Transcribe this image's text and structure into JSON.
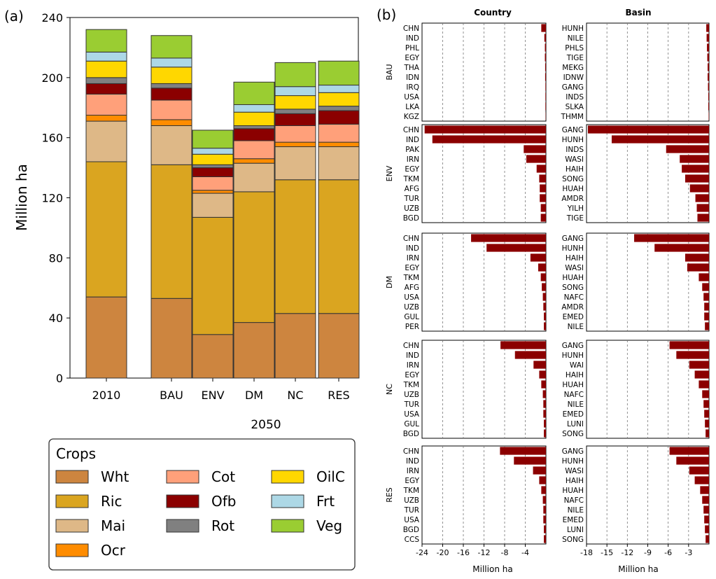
{
  "panel_labels": {
    "a": "(a)",
    "b": "(b)"
  },
  "colors": {
    "Wht": "#cd853f",
    "Ric": "#daa520",
    "Mai": "#deb887",
    "Ocr": "#ff8c00",
    "Cot": "#ffa07a",
    "Ofb": "#8b0000",
    "Rot": "#808080",
    "OilC": "#ffd700",
    "Frt": "#add8e6",
    "Veg": "#9acd32",
    "hbar": "#8b0000"
  },
  "chart_data": [
    {
      "type": "bar",
      "stacked": true,
      "categories": [
        "2010",
        "BAU",
        "ENV",
        "DM",
        "NC",
        "RES"
      ],
      "xlabel": "2050",
      "ylabel": "Million ha",
      "ylim": [
        0,
        240
      ],
      "yticks": [
        0,
        40,
        80,
        120,
        160,
        200,
        240
      ],
      "grid": false,
      "legend": {
        "title": "Crops",
        "position": "bottom"
      },
      "series": [
        {
          "name": "Wht",
          "values": [
            54,
            53,
            29,
            37,
            43,
            43
          ]
        },
        {
          "name": "Ric",
          "values": [
            90,
            89,
            78,
            87,
            89,
            89
          ]
        },
        {
          "name": "Mai",
          "values": [
            27,
            26,
            16,
            19,
            22,
            22
          ]
        },
        {
          "name": "Ocr",
          "values": [
            4,
            4,
            2,
            3,
            3,
            3
          ]
        },
        {
          "name": "Cot",
          "values": [
            14,
            13,
            9,
            12,
            11,
            12
          ]
        },
        {
          "name": "Ofb",
          "values": [
            7,
            8,
            6,
            8,
            8,
            9
          ]
        },
        {
          "name": "Rot",
          "values": [
            4,
            3,
            2,
            2,
            3,
            3
          ]
        },
        {
          "name": "OilC",
          "values": [
            11,
            11,
            7,
            9,
            9,
            9
          ]
        },
        {
          "name": "Frt",
          "values": [
            6,
            6,
            4,
            5,
            6,
            5
          ]
        },
        {
          "name": "Veg",
          "values": [
            15,
            15,
            12,
            15,
            16,
            16
          ]
        }
      ]
    },
    {
      "type": "bar",
      "orientation": "horizontal",
      "column_titles": [
        "Country",
        "Basin"
      ],
      "xlabel": "Million ha",
      "country_xlim": [
        -24,
        0
      ],
      "country_xticks": [
        -24,
        -20,
        -16,
        -12,
        -8,
        -4
      ],
      "basin_xlim": [
        -18,
        0
      ],
      "basin_xticks": [
        -18,
        -15,
        -12,
        -9,
        -6,
        -3
      ],
      "grid": "vertical dashed",
      "rows": [
        {
          "scenario": "BAU",
          "country": {
            "labels": [
              "CHN",
              "IND",
              "PHL",
              "EGY",
              "THA",
              "IDN",
              "IRQ",
              "USA",
              "LKA",
              "KGZ"
            ],
            "values": [
              -0.9,
              -0.3,
              -0.2,
              -0.2,
              -0.15,
              -0.15,
              -0.1,
              -0.1,
              -0.1,
              -0.05
            ]
          },
          "basin": {
            "labels": [
              "HUNH",
              "NILE",
              "PHLS",
              "TIGE",
              "MEKG",
              "IDNW",
              "GANG",
              "INDS",
              "SLKA",
              "THMM"
            ],
            "values": [
              -0.4,
              -0.35,
              -0.3,
              -0.25,
              -0.2,
              -0.2,
              -0.15,
              -0.1,
              -0.1,
              -0.05
            ]
          }
        },
        {
          "scenario": "ENV",
          "country": {
            "labels": [
              "CHN",
              "IND",
              "PAK",
              "IRN",
              "EGY",
              "TKM",
              "AFG",
              "TUR",
              "UZB",
              "BGD"
            ],
            "values": [
              -23.5,
              -22,
              -4.3,
              -3.8,
              -1.8,
              -1.3,
              -1.2,
              -1.2,
              -1.0,
              -1.0
            ]
          },
          "basin": {
            "labels": [
              "GANG",
              "HUNH",
              "INDS",
              "WASI",
              "HAIH",
              "SONG",
              "HUAH",
              "AMDR",
              "YILH",
              "TIGE"
            ],
            "values": [
              -17.8,
              -14.3,
              -6.3,
              -4.3,
              -4.0,
              -3.5,
              -2.8,
              -2.0,
              -1.8,
              -1.7
            ]
          }
        },
        {
          "scenario": "DM",
          "country": {
            "labels": [
              "CHN",
              "IND",
              "IRN",
              "EGY",
              "TKM",
              "AFG",
              "USA",
              "UZB",
              "GUL",
              "PER"
            ],
            "values": [
              -14.5,
              -11.5,
              -3.0,
              -1.5,
              -1.0,
              -0.8,
              -0.6,
              -0.5,
              -0.4,
              -0.4
            ]
          },
          "basin": {
            "labels": [
              "GANG",
              "HUNH",
              "HAIH",
              "WASI",
              "HUAH",
              "SONG",
              "NAFC",
              "AMDR",
              "EMED",
              "NILE"
            ],
            "values": [
              -11.0,
              -8.0,
              -3.5,
              -3.2,
              -1.5,
              -1.0,
              -0.8,
              -0.7,
              -0.7,
              -0.6
            ]
          }
        },
        {
          "scenario": "NC",
          "country": {
            "labels": [
              "CHN",
              "IND",
              "IRN",
              "EGY",
              "TKM",
              "UZB",
              "TUR",
              "USA",
              "GUL",
              "BGD"
            ],
            "values": [
              -8.8,
              -6.0,
              -2.4,
              -1.3,
              -0.9,
              -0.6,
              -0.5,
              -0.5,
              -0.4,
              -0.4
            ]
          },
          "basin": {
            "labels": [
              "GANG",
              "HUNH",
              "WAI",
              "HAIH",
              "HUAH",
              "NAFC",
              "NILE",
              "EMED",
              "LUNI",
              "SONG"
            ],
            "values": [
              -5.8,
              -4.8,
              -2.9,
              -2.1,
              -1.5,
              -1.0,
              -0.8,
              -0.7,
              -0.6,
              -0.5
            ]
          }
        },
        {
          "scenario": "RES",
          "country": {
            "labels": [
              "CHN",
              "IND",
              "IRN",
              "EGY",
              "TKM",
              "UZB",
              "TUR",
              "USA",
              "BGD",
              "CCS"
            ],
            "values": [
              -8.9,
              -6.2,
              -2.5,
              -1.3,
              -0.9,
              -0.6,
              -0.5,
              -0.5,
              -0.4,
              -0.4
            ]
          },
          "basin": {
            "labels": [
              "GANG",
              "HUNH",
              "WASI",
              "HAIH",
              "HUAH",
              "NAFC",
              "NILE",
              "EMED",
              "LUNI",
              "SONG"
            ],
            "values": [
              -5.8,
              -4.8,
              -2.9,
              -2.1,
              -1.3,
              -1.0,
              -0.8,
              -0.7,
              -0.6,
              -0.5
            ]
          }
        }
      ]
    }
  ]
}
